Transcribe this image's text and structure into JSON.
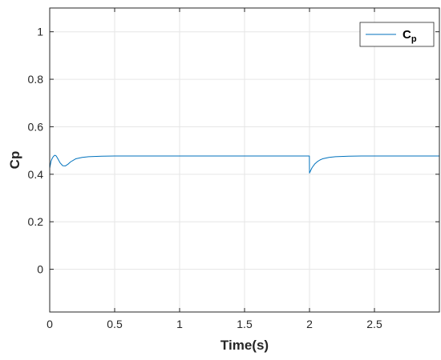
{
  "chart_data": {
    "type": "line",
    "title": "",
    "xlabel": "Time(s)",
    "ylabel": "Cp",
    "xlim": [
      0,
      3
    ],
    "ylim": [
      -0.18,
      1.1
    ],
    "xticks": [
      0,
      0.5,
      1,
      1.5,
      2,
      2.5
    ],
    "xtick_labels": [
      "0",
      "0.5",
      "1",
      "1.5",
      "2",
      "2.5"
    ],
    "yticks": [
      0,
      0.2,
      0.4,
      0.6,
      0.8,
      1
    ],
    "ytick_labels": [
      "0",
      "0.2",
      "0.4",
      "0.6",
      "0.8",
      "1"
    ],
    "grid": true,
    "legend": {
      "position": "top-right",
      "label_main": "C",
      "label_sub": "p"
    },
    "colors": {
      "series": "#0072BD",
      "grid": "#e6e6e6",
      "axes": "#262626"
    },
    "series": [
      {
        "name": "Cp",
        "x": [
          0,
          0.01,
          0.02,
          0.03,
          0.04,
          0.05,
          0.06,
          0.08,
          0.1,
          0.12,
          0.14,
          0.16,
          0.2,
          0.25,
          0.3,
          0.4,
          0.5,
          0.7,
          1.0,
          1.5,
          1.999,
          2.0,
          2.01,
          2.02,
          2.04,
          2.06,
          2.08,
          2.1,
          2.15,
          2.2,
          2.3,
          2.4,
          2.6,
          3.0
        ],
        "y": [
          0.425,
          0.455,
          0.468,
          0.476,
          0.48,
          0.477,
          0.468,
          0.448,
          0.436,
          0.435,
          0.442,
          0.452,
          0.465,
          0.471,
          0.474,
          0.476,
          0.477,
          0.477,
          0.477,
          0.477,
          0.477,
          0.405,
          0.417,
          0.428,
          0.443,
          0.453,
          0.46,
          0.465,
          0.471,
          0.474,
          0.476,
          0.477,
          0.477,
          0.477
        ]
      }
    ]
  }
}
